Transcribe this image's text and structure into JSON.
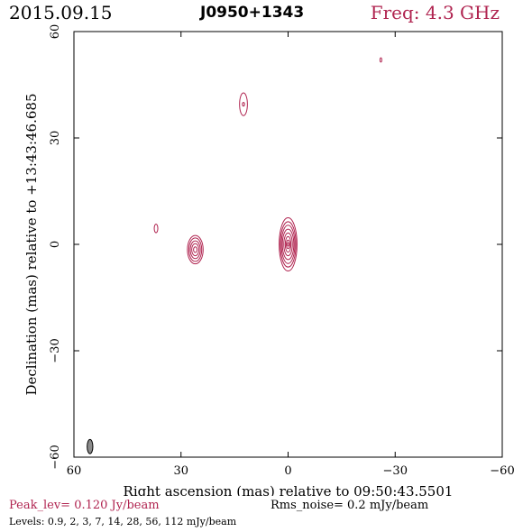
{
  "header": {
    "date": "2015.09.15",
    "source": "J0950+1343",
    "frequency": "Freq: 4.3 GHz"
  },
  "footer": {
    "peak": "Peak_lev=  0.120 Jy/beam",
    "rms": "Rms_noise=  0.2 mJy/beam",
    "levels": "Levels: 0.9,   2,   3,   7,  14,  28,  56, 112 mJy/beam"
  },
  "colors": {
    "contour": "#b02450",
    "beam": "#8c8c8c",
    "accent_text": "#b02450"
  },
  "chart_data": {
    "type": "contour",
    "xlabel": "Right ascension (mas) relative to 09:50:43.5501",
    "ylabel": "Declination (mas) relative to +13:43:46.685",
    "xlim": [
      60,
      -60
    ],
    "ylim": [
      -60,
      60
    ],
    "x_ticks": [
      60,
      30,
      0,
      -30,
      -60
    ],
    "y_ticks": [
      -60,
      -30,
      0,
      30,
      60
    ],
    "x_tick_labels": [
      "60",
      "30",
      "0",
      "−30",
      "−60"
    ],
    "y_tick_labels": [
      "−60",
      "−30",
      "0",
      "30",
      "60"
    ],
    "grid": false,
    "contour_levels_mJy": [
      0.9,
      2,
      3,
      7,
      14,
      28,
      56,
      112
    ],
    "components": [
      {
        "x": 0,
        "y": 0,
        "rx": [
          2.5,
          2.2,
          1.9,
          1.6,
          1.2,
          0.8,
          0.5,
          0.2
        ],
        "ry": [
          7.5,
          6.4,
          5.4,
          4.3,
          3.2,
          2.2,
          1.2,
          0.5
        ]
      },
      {
        "x": 26,
        "y": -1.5,
        "rx": [
          2.2,
          1.8,
          1.4,
          1.0,
          0.5
        ],
        "ry": [
          4.0,
          3.3,
          2.5,
          1.7,
          0.8
        ]
      },
      {
        "x": 12.5,
        "y": 39.5,
        "rx": [
          1.1,
          0.3
        ],
        "ry": [
          3.2,
          0.5
        ]
      },
      {
        "x": 37,
        "y": 4.5,
        "rx": [
          0.5
        ],
        "ry": [
          1.2
        ]
      },
      {
        "x": -26,
        "y": 52,
        "rx": [
          0.25
        ],
        "ry": [
          0.6
        ]
      }
    ],
    "beam": {
      "x": 55.5,
      "y": -57,
      "rx": 0.8,
      "ry": 2.0
    }
  }
}
